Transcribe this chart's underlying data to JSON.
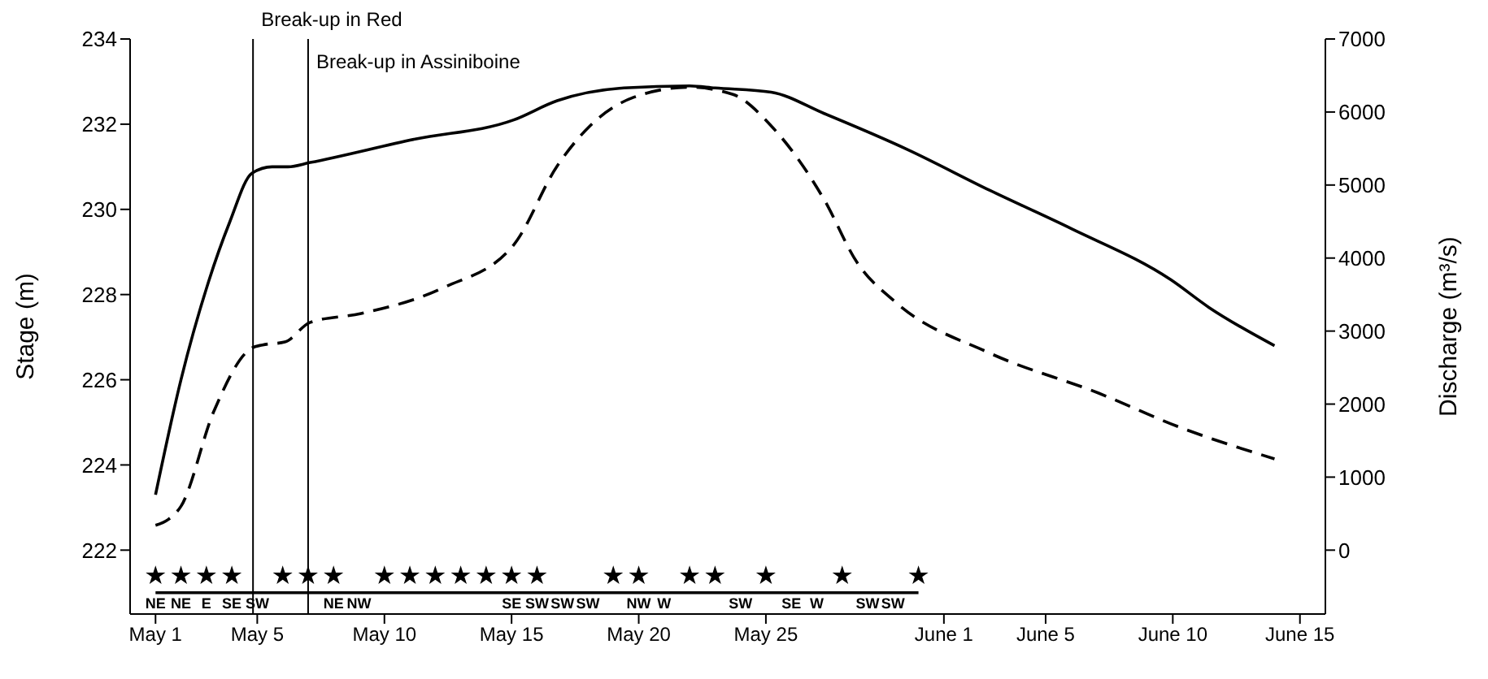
{
  "chart_data": {
    "type": "line",
    "ylabel": "Stage (m)",
    "y2label": "Discharge (m³/s)",
    "xlim": [
      "--04-30",
      "--06-16"
    ],
    "xticks": [
      {
        "value": "--05-01",
        "label": "May 1"
      },
      {
        "value": "--05-05",
        "label": "May 5"
      },
      {
        "value": "--05-10",
        "label": "May 10"
      },
      {
        "value": "--05-15",
        "label": "May 15"
      },
      {
        "value": "--05-20",
        "label": "May 20"
      },
      {
        "value": "--05-25",
        "label": "May 25"
      },
      {
        "value": "--06-01",
        "label": "June 1"
      },
      {
        "value": "--06-05",
        "label": "June 5"
      },
      {
        "value": "--06-10",
        "label": "June 10"
      },
      {
        "value": "--06-15",
        "label": "June 15"
      }
    ],
    "ylim": [
      220.5,
      234
    ],
    "yticks": [
      222,
      224,
      226,
      228,
      230,
      232,
      234
    ],
    "y2lim": [
      -875,
      7000
    ],
    "y2ticks": [
      0,
      1000,
      2000,
      3000,
      4000,
      5000,
      6000,
      7000
    ],
    "grid": false,
    "series": [
      {
        "color": "#000000",
        "line_style": "solid",
        "marker": "none",
        "x": [
          "--05-01",
          "--05-02",
          "--05-03T02:00",
          "--05-03T22:00",
          "--05-04T19:00",
          "--05-05T14:00",
          "--05-06T05:00",
          "--05-07T02:00",
          "--05-11T05:00",
          "--05-15T02:00",
          "--05-16T19:00",
          "--05-19T10:00",
          "--05-22",
          "--05-23",
          "--05-25T05:00",
          "--05-27T07:00",
          "--05-30T14:00",
          "--06-02T19:00",
          "--06-06",
          "--06-09T22:00",
          "--06-11T10:00",
          "--06-14"
        ],
        "values": [
          223.3,
          226,
          228.3,
          229.7,
          230.85,
          231,
          231,
          231.1,
          231.65,
          232.1,
          232.55,
          232.85,
          232.9,
          232.85,
          232.75,
          232.25,
          231.4,
          230.45,
          229.55,
          228.35,
          227.7,
          226.8
        ]
      },
      {
        "axis": "y2",
        "color": "#000000",
        "line_style": "dashed",
        "marker": "none",
        "x": [
          "--05-01",
          "--05-01T12:00",
          "--05-02",
          "--05-03T07:00",
          "--05-04T19:00",
          "--05-05T05:00",
          "--05-06T02:00",
          "--05-07T02:00",
          "--05-09T02:00",
          "--05-12T07:00",
          "--05-15T02:00",
          "--05-16T19:00",
          "--05-18T02:00",
          "--05-19T19:00",
          "--05-22",
          "--05-23T17:00",
          "--05-25T05:00",
          "--05-27T07:00",
          "--05-28T14:00",
          "--05-30T02:00",
          "--06-02T19:00",
          "--06-07T02:00",
          "--06-10T07:00",
          "--06-14"
        ],
        "values": [
          340,
          420,
          600,
          1900,
          2770,
          2810,
          2850,
          3120,
          3240,
          3590,
          4180,
          5260,
          5810,
          6200,
          6340,
          6240,
          5810,
          4800,
          3940,
          3400,
          2700,
          2150,
          1680,
          1250
        ]
      },
      {
        "color": "#000000",
        "line_style": "solid",
        "marker": "none",
        "x": [
          "--05-01",
          "--05-31"
        ],
        "values": [
          221,
          221
        ]
      },
      {
        "type": "scatter",
        "color": "#000000",
        "marker": "star",
        "x": [
          "--05-01",
          "--05-02",
          "--05-03",
          "--05-04",
          "--05-06",
          "--05-07",
          "--05-08",
          "--05-10",
          "--05-11",
          "--05-12",
          "--05-13",
          "--05-14",
          "--05-15",
          "--05-16",
          "--05-19",
          "--05-20",
          "--05-22",
          "--05-23",
          "--05-25",
          "--05-28",
          "--05-31"
        ],
        "values": [
          221.4,
          221.4,
          221.4,
          221.4,
          221.4,
          221.4,
          221.4,
          221.4,
          221.4,
          221.4,
          221.4,
          221.4,
          221.4,
          221.4,
          221.4,
          221.4,
          221.4,
          221.4,
          221.4,
          221.4,
          221.4
        ]
      }
    ],
    "ref_lines": [
      {
        "axis": "x",
        "value": "--05-04T20:00",
        "label": "Break-up in Red",
        "color": "#000000"
      },
      {
        "axis": "x",
        "value": "--05-07",
        "label": "Break-up in Assiniboine",
        "color": "#000000"
      }
    ],
    "annotations": [
      {
        "text": "NE",
        "x": "--05-01",
        "y": 221
      },
      {
        "text": "NE",
        "x": "--05-02",
        "y": 221
      },
      {
        "text": "E",
        "x": "--05-03",
        "y": 221
      },
      {
        "text": "SE",
        "x": "--05-04",
        "y": 221
      },
      {
        "text": "SW",
        "x": "--05-05",
        "y": 221
      },
      {
        "text": "NE",
        "x": "--05-08",
        "y": 221
      },
      {
        "text": "NW",
        "x": "--05-09",
        "y": 221
      },
      {
        "text": "SE",
        "x": "--05-15",
        "y": 221
      },
      {
        "text": "SW",
        "x": "--05-16",
        "y": 221
      },
      {
        "text": "SW",
        "x": "--05-17",
        "y": 221
      },
      {
        "text": "SW",
        "x": "--05-18",
        "y": 221
      },
      {
        "text": "NW",
        "x": "--05-20",
        "y": 221
      },
      {
        "text": "W",
        "x": "--05-21",
        "y": 221
      },
      {
        "text": "SW",
        "x": "--05-24",
        "y": 221
      },
      {
        "text": "SE",
        "x": "--05-26",
        "y": 221
      },
      {
        "text": "W",
        "x": "--05-27",
        "y": 221
      },
      {
        "text": "SW",
        "x": "--05-29",
        "y": 221
      },
      {
        "text": "SW",
        "x": "--05-30",
        "y": 221
      }
    ]
  }
}
